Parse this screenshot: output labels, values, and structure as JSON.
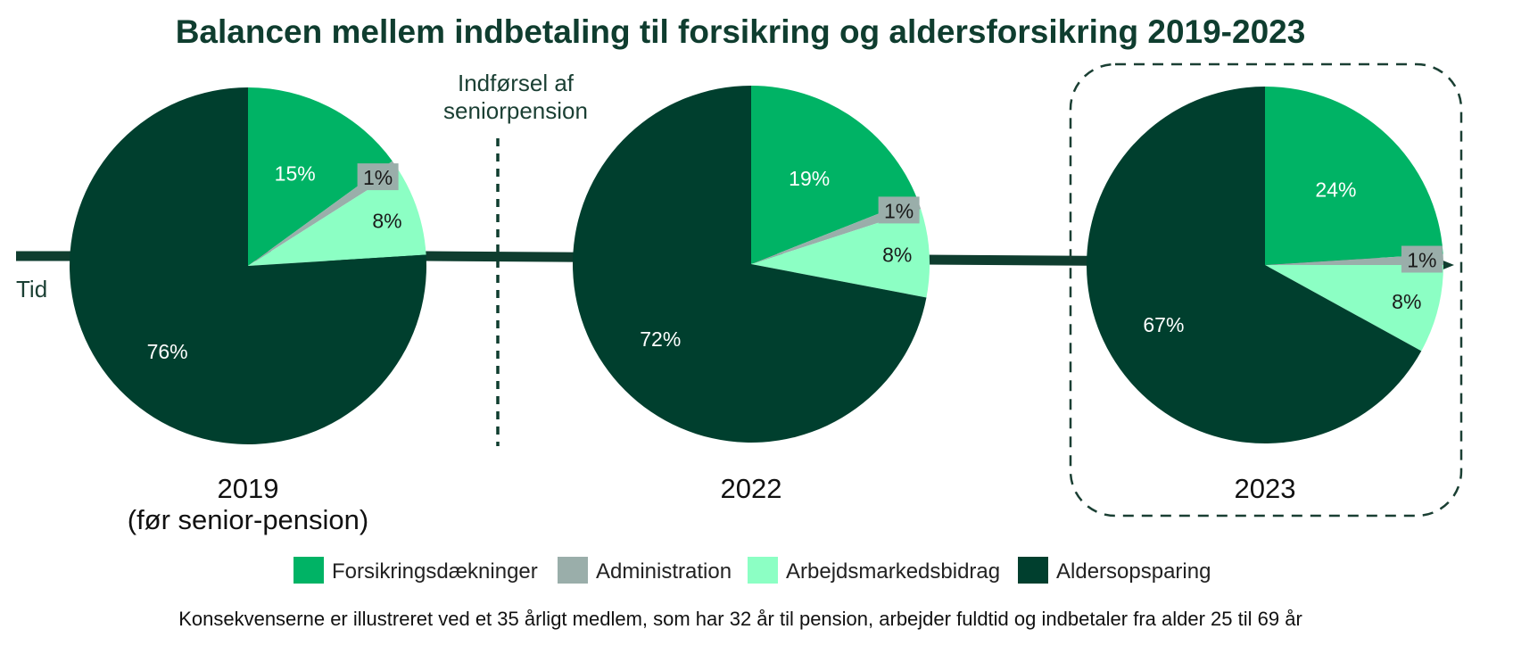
{
  "title": "Balancen mellem indbetaling til forsikring og aldersforsikring 2019-2023",
  "time_label": "Tid",
  "annotation": [
    "Indførsel af",
    "seniorpension"
  ],
  "footnote": "Konsekvenserne er illustreret ved et 35 årligt medlem, som har 32 år til pension, arbejder fuldtid og indbetaler fra alder 25 til 69 år",
  "colors": {
    "Forsikringsdækninger": "#00b365",
    "Administration": "#9aaeaa",
    "Arbejdsmarkedsbidrag": "#8cffc4",
    "Aldersopsparing": "#003f2e",
    "arrow": "#0f3d2f"
  },
  "chart_data": {
    "type": "pie",
    "title": "Balancen mellem indbetaling til forsikring og aldersforsikring 2019-2023",
    "categories": [
      "Forsikringsdækninger",
      "Administration",
      "Arbejdsmarkedsbidrag",
      "Aldersopsparing"
    ],
    "legend_position": "bottom",
    "pies": [
      {
        "label": [
          "2019",
          "(før senior-pension)"
        ],
        "values": [
          15,
          1,
          8,
          76
        ],
        "labels": [
          "15%",
          "1%",
          "8%",
          "76%"
        ],
        "highlighted": false
      },
      {
        "label": [
          "2022"
        ],
        "values": [
          19,
          1,
          8,
          72
        ],
        "labels": [
          "19%",
          "1%",
          "8%",
          "72%"
        ],
        "highlighted": false
      },
      {
        "label": [
          "2023"
        ],
        "values": [
          24,
          1,
          8,
          67
        ],
        "labels": [
          "24%",
          "1%",
          "8%",
          "67%"
        ],
        "highlighted": true
      }
    ]
  }
}
